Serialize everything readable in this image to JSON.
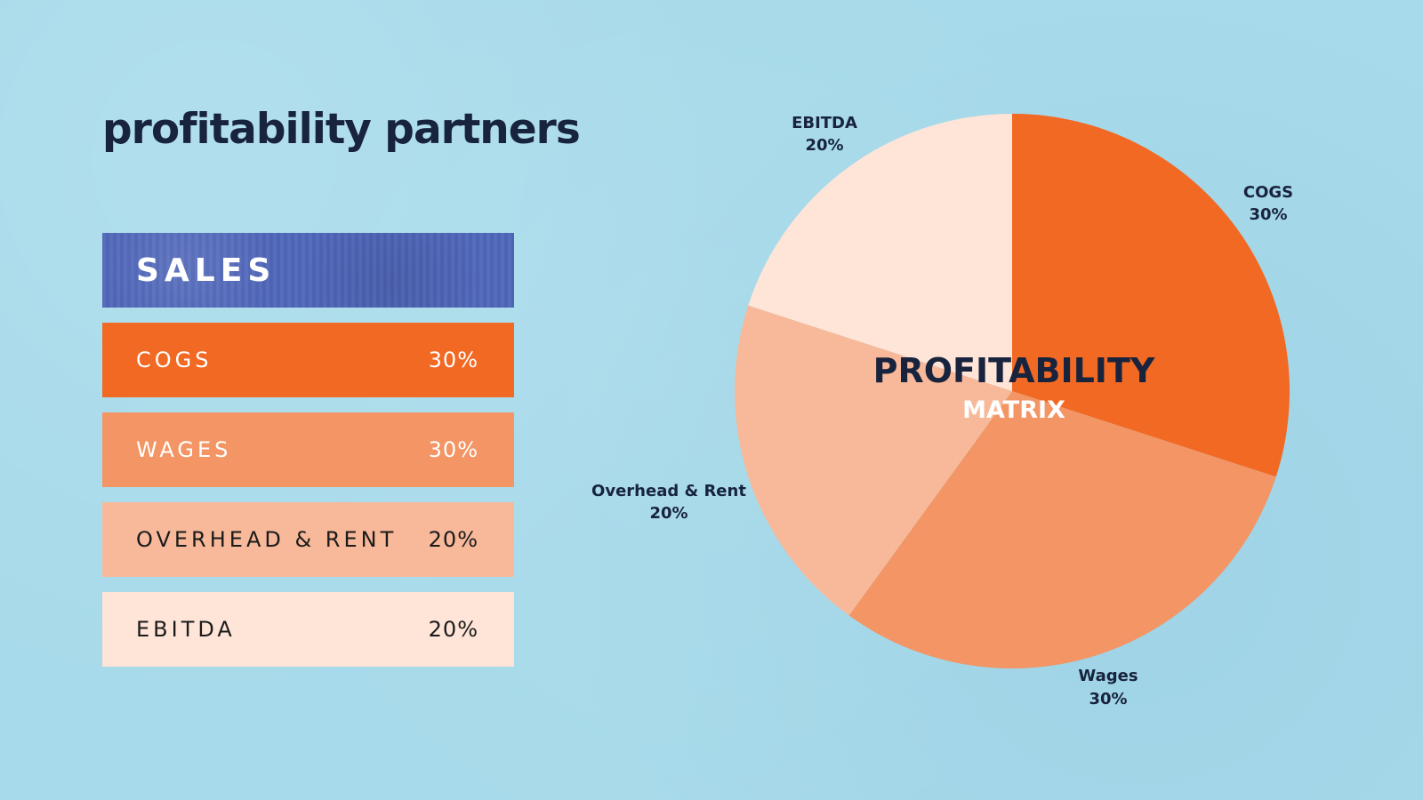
{
  "page": {
    "title": "profitability partners"
  },
  "table": {
    "header": "SALES",
    "rows": [
      {
        "label": "COGS",
        "value": "30%"
      },
      {
        "label": "WAGES",
        "value": "30%"
      },
      {
        "label": "OVERHEAD & RENT",
        "value": "20%"
      },
      {
        "label": "EBITDA",
        "value": "20%"
      }
    ]
  },
  "colors": {
    "background": "#a7daea",
    "sales": "#4f66b9",
    "cogs": "#f26924",
    "wages": "#f39564",
    "overhead": "#f7b99a",
    "ebitda": "#ffe4d8",
    "text_dark": "#18233d",
    "text_light": "#ffffff"
  },
  "chart_data": {
    "type": "pie",
    "title": "PROFITABILITY",
    "subtitle": "MATRIX",
    "slices": [
      {
        "name": "COGS",
        "value": 30,
        "label": "30%",
        "color": "#f26924"
      },
      {
        "name": "Wages",
        "value": 30,
        "label": "30%",
        "color": "#f39564"
      },
      {
        "name": "Overhead & Rent",
        "value": 20,
        "label": "20%",
        "color": "#f7b99a"
      },
      {
        "name": "EBITDA",
        "value": 20,
        "label": "20%",
        "color": "#ffe4d8"
      }
    ]
  }
}
